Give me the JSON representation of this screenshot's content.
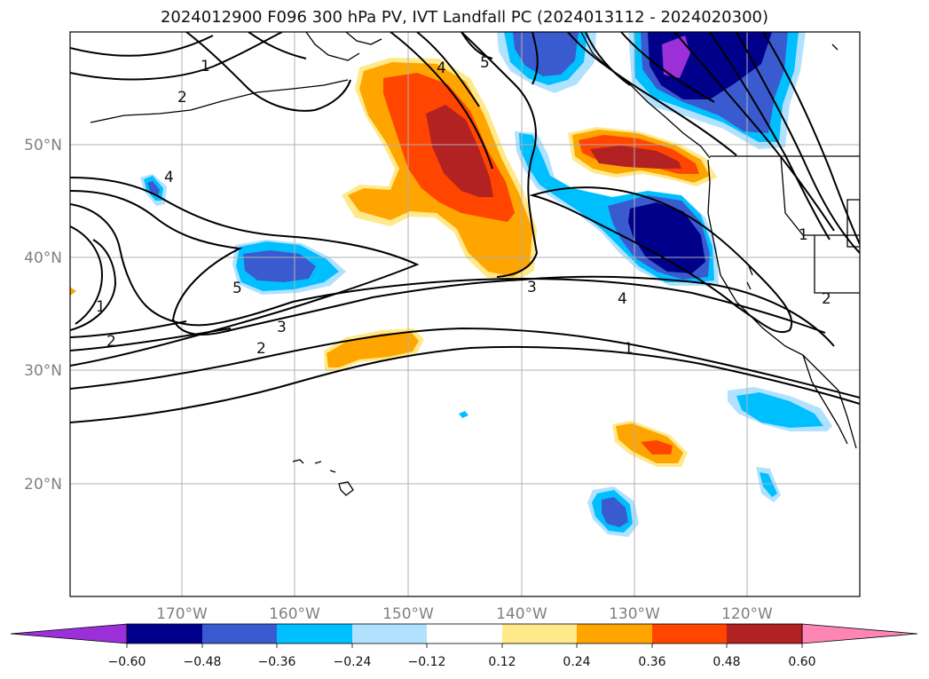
{
  "title": "2024012900 F096 300 hPa PV, IVT Landfall PC (2024013112 - 2024020300)",
  "longitude_labels": [
    "170°W",
    "160°W",
    "150°W",
    "140°W",
    "130°W",
    "120°W"
  ],
  "latitude_labels": [
    "20°N",
    "30°N",
    "40°N",
    "50°N"
  ],
  "contour_labels": [
    "1",
    "2",
    "4",
    "4",
    "5",
    "5",
    "3",
    "2",
    "3",
    "1",
    "4",
    "1",
    "2",
    "1",
    "2"
  ],
  "colorbar": {
    "ticks": [
      "−0.60",
      "−0.48",
      "−0.36",
      "−0.24",
      "−0.12",
      "0.12",
      "0.24",
      "0.36",
      "0.48",
      "0.60"
    ],
    "colors": [
      "#9b30d9",
      "#00008b",
      "#3a5bd0",
      "#00bfff",
      "#b0e2ff",
      "#ffffff",
      "#ffe98a",
      "#ffa500",
      "#ff4500",
      "#b22222",
      "#ff85b5"
    ]
  },
  "shading_colors": {
    "neg_light": "#b0e2ff",
    "neg_mid": "#00bfff",
    "neg_dark": "#3a5bd0",
    "neg_darker": "#00008b",
    "neg_min": "#9b30d9",
    "pos_light": "#ffe98a",
    "pos_mid": "#ffa500",
    "pos_dark": "#ff4500",
    "pos_darker": "#b22222"
  }
}
